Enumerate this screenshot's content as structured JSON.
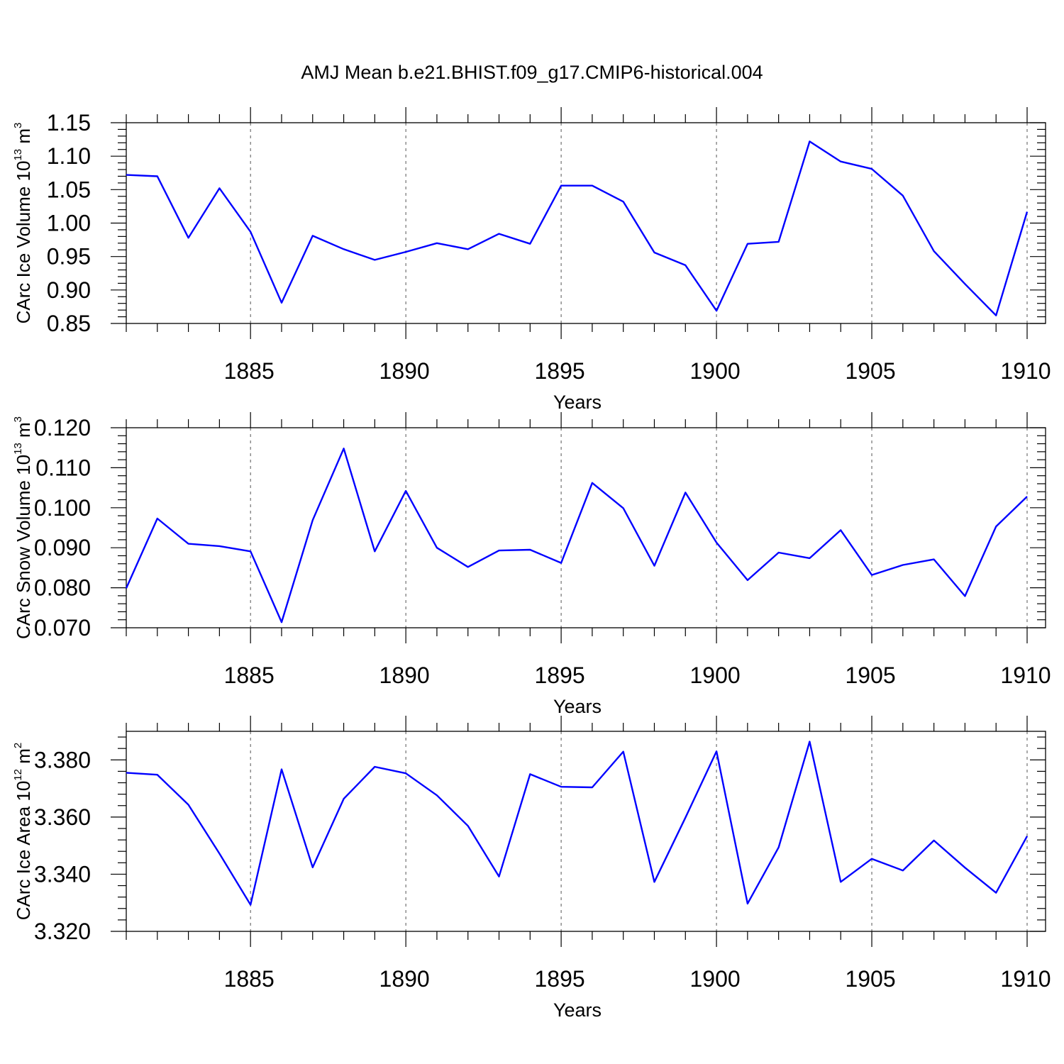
{
  "title": "AMJ Mean b.e21.BHIST.f09_g17.CMIP6-historical.004",
  "line_color": "#0000ff",
  "chart_data": [
    {
      "type": "line",
      "ylabel": "CArc Ice Volume 10",
      "ylabel_exp": "13",
      "ylabel_unit": " m",
      "ylabel_unit_exp": "3",
      "xlabel": "Years",
      "xlim": [
        1881,
        1910
      ],
      "ylim": [
        0.85,
        1.15
      ],
      "x_ticks": [
        1885,
        1890,
        1895,
        1900,
        1905,
        1910
      ],
      "y_ticks": [
        "0.85",
        "0.90",
        "0.95",
        "1.00",
        "1.05",
        "1.10",
        "1.15"
      ],
      "x": [
        1881,
        1882,
        1883,
        1884,
        1885,
        1886,
        1887,
        1888,
        1889,
        1890,
        1891,
        1892,
        1893,
        1894,
        1895,
        1896,
        1897,
        1898,
        1899,
        1900,
        1901,
        1902,
        1903,
        1904,
        1905,
        1906,
        1907,
        1908,
        1909,
        1910
      ],
      "values": [
        1.072,
        1.07,
        0.978,
        1.052,
        0.987,
        0.881,
        0.981,
        0.961,
        0.945,
        0.957,
        0.97,
        0.961,
        0.984,
        0.969,
        1.056,
        1.056,
        1.032,
        0.956,
        0.937,
        0.869,
        0.969,
        0.972,
        1.122,
        1.092,
        1.081,
        1.041,
        0.958,
        0.909,
        0.862,
        1.017
      ]
    },
    {
      "type": "line",
      "ylabel": "CArc Snow Volume 10",
      "ylabel_exp": "13",
      "ylabel_unit": " m",
      "ylabel_unit_exp": "3",
      "xlabel": "Years",
      "xlim": [
        1881,
        1910
      ],
      "ylim": [
        0.07,
        0.12
      ],
      "x_ticks": [
        1885,
        1890,
        1895,
        1900,
        1905,
        1910
      ],
      "y_ticks": [
        "0.070",
        "0.080",
        "0.090",
        "0.100",
        "0.110",
        "0.120"
      ],
      "x": [
        1881,
        1882,
        1883,
        1884,
        1885,
        1886,
        1887,
        1888,
        1889,
        1890,
        1891,
        1892,
        1893,
        1894,
        1895,
        1896,
        1897,
        1898,
        1899,
        1900,
        1901,
        1902,
        1903,
        1904,
        1905,
        1906,
        1907,
        1908,
        1909,
        1910
      ],
      "values": [
        0.0799,
        0.0973,
        0.091,
        0.0904,
        0.0891,
        0.0714,
        0.0969,
        0.1148,
        0.0891,
        0.1042,
        0.09,
        0.0852,
        0.0893,
        0.0895,
        0.0862,
        0.1062,
        0.0999,
        0.0855,
        0.1038,
        0.0913,
        0.0819,
        0.0888,
        0.0874,
        0.0944,
        0.0832,
        0.0857,
        0.0871,
        0.0779,
        0.0953,
        0.1028
      ]
    },
    {
      "type": "line",
      "ylabel": "CArc Ice Area 10",
      "ylabel_exp": "12",
      "ylabel_unit": " m",
      "ylabel_unit_exp": "2",
      "xlabel": "Years",
      "xlim": [
        1881,
        1910
      ],
      "ylim": [
        3.32,
        3.39
      ],
      "x_ticks": [
        1885,
        1890,
        1895,
        1900,
        1905,
        1910
      ],
      "y_ticks": [
        "3.320",
        "3.340",
        "3.360",
        "3.380"
      ],
      "x": [
        1881,
        1882,
        1883,
        1884,
        1885,
        1886,
        1887,
        1888,
        1889,
        1890,
        1891,
        1892,
        1893,
        1894,
        1895,
        1896,
        1897,
        1898,
        1899,
        1900,
        1901,
        1902,
        1903,
        1904,
        1905,
        1906,
        1907,
        1908,
        1909,
        1910
      ],
      "values": [
        3.3755,
        3.3748,
        3.3643,
        3.3472,
        3.3293,
        3.3767,
        3.3424,
        3.3664,
        3.3776,
        3.3753,
        3.3676,
        3.3569,
        3.3392,
        3.375,
        3.3706,
        3.3704,
        3.3829,
        3.3373,
        3.3598,
        3.383,
        3.3297,
        3.3494,
        3.3864,
        3.3373,
        3.3454,
        3.3413,
        3.3518,
        3.3423,
        3.3335,
        3.3533
      ]
    }
  ]
}
